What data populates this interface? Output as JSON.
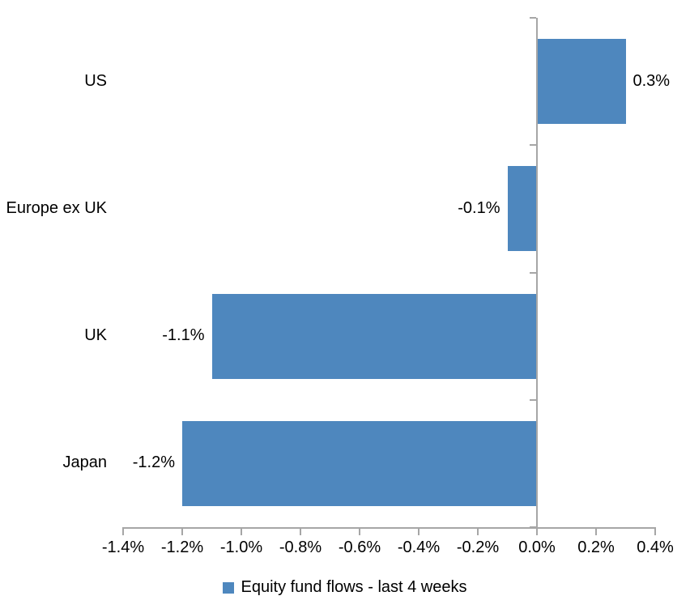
{
  "chart_data": {
    "type": "bar",
    "orientation": "horizontal",
    "title": "",
    "categories": [
      "US",
      "Europe ex UK",
      "UK",
      "Japan"
    ],
    "values": [
      0.3,
      -0.1,
      -1.1,
      -1.2
    ],
    "value_labels": [
      "0.3%",
      "-0.1%",
      "-1.1%",
      "-1.2%"
    ],
    "series_name": "Equity fund flows - last 4 weeks",
    "xlim": [
      -1.4,
      0.4
    ],
    "x_tick_values": [
      -1.4,
      -1.2,
      -1.0,
      -0.8,
      -0.6,
      -0.4,
      -0.2,
      0.0,
      0.2,
      0.4
    ],
    "x_tick_labels": [
      "-1.4%",
      "-1.2%",
      "-1.0%",
      "-0.8%",
      "-0.6%",
      "-0.4%",
      "-0.2%",
      "0.0%",
      "0.2%",
      "0.4%"
    ],
    "grid": false,
    "legend_position": "bottom-center",
    "legend": [
      {
        "label": "Equity fund flows - last 4 weeks",
        "color": "#4e87be"
      }
    ],
    "colors": {
      "bar": "#4e87be",
      "axis": "#a6a6a6",
      "text": "#000000",
      "background": "#ffffff"
    }
  }
}
